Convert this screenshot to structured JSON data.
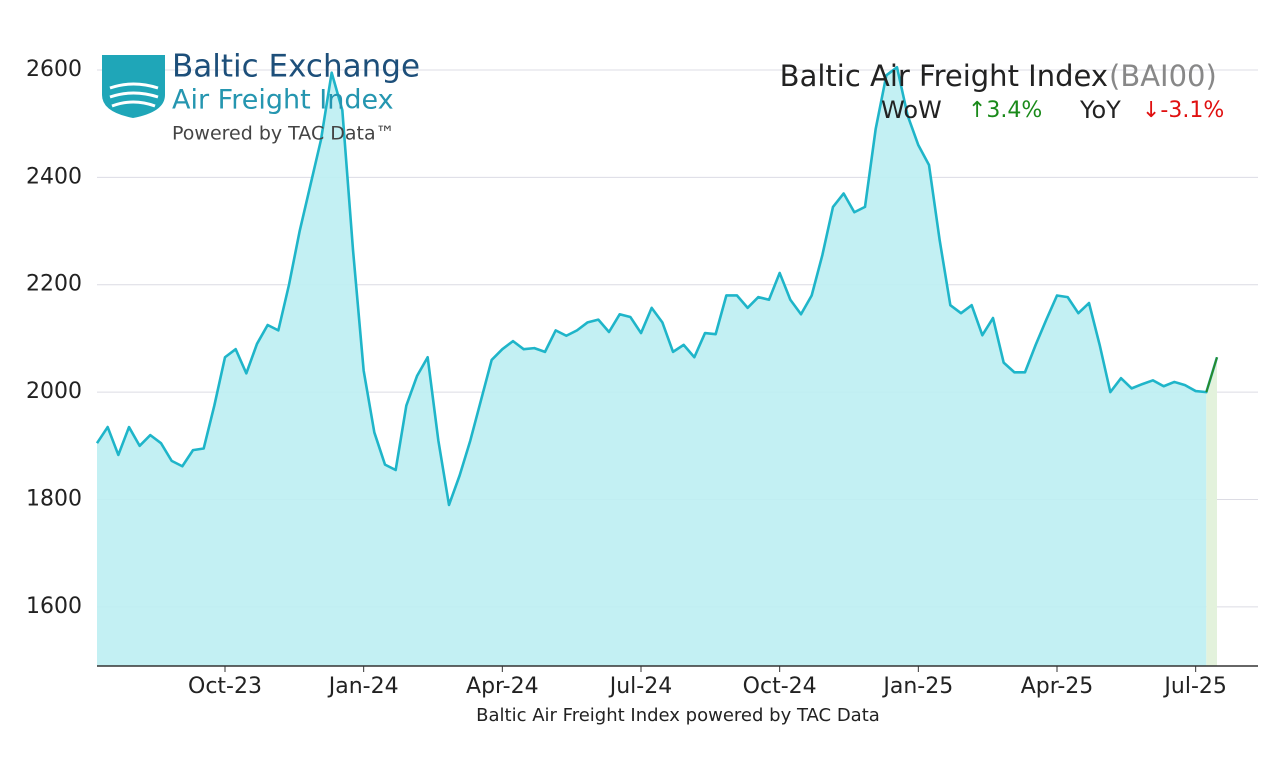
{
  "chart_data": {
    "type": "line",
    "title": "Baltic Air Freight Index",
    "code": "(BAI00)",
    "wow_label": "WoW",
    "wow_change": "↑3.4%",
    "yoy_label": "YoY",
    "yoy_change": "↓-3.1%",
    "x_label": "Baltic Air Freight Index powered by TAC Data",
    "logo": {
      "name": "Baltic Exchange",
      "product": "Air Freight Index",
      "tagline": "Powered by TAC Data™"
    },
    "categories": [
      null,
      null,
      null,
      null,
      null,
      null,
      null,
      null,
      null,
      null,
      null,
      null,
      "Oct-23",
      null,
      null,
      null,
      null,
      null,
      null,
      null,
      null,
      null,
      null,
      null,
      null,
      "Jan-24",
      null,
      null,
      null,
      null,
      null,
      null,
      null,
      null,
      null,
      null,
      null,
      null,
      "Apr-24",
      null,
      null,
      null,
      null,
      null,
      null,
      null,
      null,
      null,
      null,
      null,
      null,
      "Jul-24",
      null,
      null,
      null,
      null,
      null,
      null,
      null,
      null,
      null,
      null,
      null,
      null,
      "Oct-24",
      null,
      null,
      null,
      null,
      null,
      null,
      null,
      null,
      null,
      null,
      null,
      null,
      "Jan-25",
      null,
      null,
      null,
      null,
      null,
      null,
      null,
      null,
      null,
      null,
      null,
      null,
      "Apr-25",
      null,
      null,
      null,
      null,
      null,
      null,
      null,
      null,
      null,
      null,
      null,
      null,
      "Jul-25",
      null,
      null
    ],
    "values": [
      1905,
      1935,
      1883,
      1935,
      1900,
      1920,
      1905,
      1872,
      1862,
      1892,
      1895,
      1975,
      2065,
      2080,
      2035,
      2090,
      2125,
      2115,
      2200,
      2300,
      2385,
      2470,
      2595,
      2525,
      2265,
      2040,
      1925,
      1865,
      1855,
      1975,
      2030,
      2065,
      1910,
      1790,
      1845,
      1910,
      1985,
      2060,
      2080,
      2095,
      2080,
      2082,
      2075,
      2115,
      2105,
      2115,
      2130,
      2135,
      2112,
      2145,
      2140,
      2110,
      2157,
      2130,
      2075,
      2088,
      2065,
      2110,
      2108,
      2180,
      2180,
      2157,
      2177,
      2172,
      2222,
      2172,
      2145,
      2180,
      2255,
      2345,
      2370,
      2335,
      2345,
      2490,
      2590,
      2605,
      2515,
      2460,
      2423,
      2283,
      2162,
      2147,
      2162,
      2106,
      2138,
      2055,
      2037,
      2037,
      2088,
      2135,
      2180,
      2177,
      2147,
      2166,
      2088,
      2000,
      2026,
      2007,
      2015,
      2022,
      2011,
      2019,
      2013,
      2002,
      2000,
      2065
    ],
    "color": "#1fb5c9",
    "fill_color": "#bdeef2",
    "last_segment_color": "#2a8a2a",
    "last_fill_color": "#e3f2dc",
    "wow_color": "#1a8a1a",
    "yoy_color": "#e01010",
    "ylim": [
      1490,
      2680
    ],
    "yticks": [
      1600,
      1800,
      2000,
      2200,
      2400,
      2600
    ],
    "grid": true
  }
}
